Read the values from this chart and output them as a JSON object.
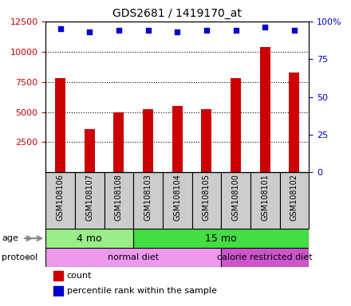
{
  "title": "GDS2681 / 1419170_at",
  "samples": [
    "GSM108106",
    "GSM108107",
    "GSM108108",
    "GSM108103",
    "GSM108104",
    "GSM108105",
    "GSM108100",
    "GSM108101",
    "GSM108102"
  ],
  "counts": [
    7800,
    3600,
    5000,
    5200,
    5500,
    5200,
    7800,
    10400,
    8300
  ],
  "percentile_ranks": [
    95,
    93,
    94,
    94,
    93,
    94,
    94,
    96,
    94
  ],
  "ylim_left": [
    0,
    12500
  ],
  "ylim_right": [
    0,
    100
  ],
  "yticks_left": [
    2500,
    5000,
    7500,
    10000,
    12500
  ],
  "yticks_right": [
    0,
    25,
    50,
    75,
    100
  ],
  "bar_color": "#cc0000",
  "dot_color": "#0000cc",
  "age_groups": [
    {
      "label": "4 mo",
      "start": 0,
      "end": 3,
      "color": "#99ee88"
    },
    {
      "label": "15 mo",
      "start": 3,
      "end": 9,
      "color": "#44dd44"
    }
  ],
  "protocol_groups": [
    {
      "label": "normal diet",
      "start": 0,
      "end": 6,
      "color": "#ee99ee"
    },
    {
      "label": "calorie restricted diet",
      "start": 6,
      "end": 9,
      "color": "#cc55cc"
    }
  ],
  "grid_color": "#000000",
  "tick_label_color_left": "#cc0000",
  "tick_label_color_right": "#0000cc",
  "sample_box_color": "#cccccc",
  "label_fontsize": 8,
  "title_fontsize": 10
}
